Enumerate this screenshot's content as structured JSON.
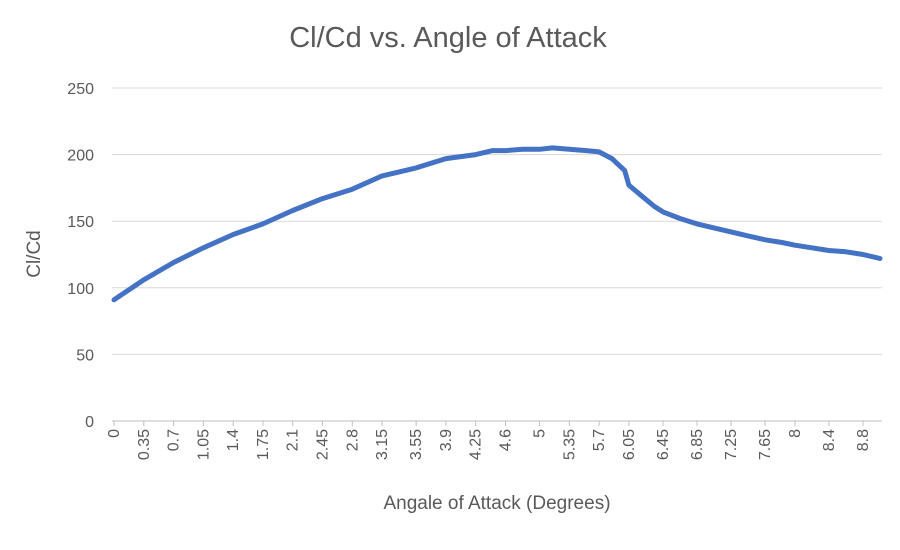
{
  "chart_data": {
    "type": "line",
    "title": "Cl/Cd vs. Angle of Attack",
    "xlabel": "Angale of Attack (Degrees)",
    "ylabel": "Cl/Cd",
    "ylim": [
      0,
      250
    ],
    "yticks": [
      "0",
      "50",
      "100",
      "150",
      "200",
      "250"
    ],
    "xticks": [
      "0",
      "0.35",
      "0.7",
      "1.05",
      "1.4",
      "1.75",
      "2.1",
      "2.45",
      "2.8",
      "3.15",
      "3.55",
      "3.9",
      "4.25",
      "4.6",
      "5",
      "5.35",
      "5.7",
      "6.05",
      "6.45",
      "6.85",
      "7.25",
      "7.65",
      "8",
      "8.4",
      "8.8"
    ],
    "grid": true,
    "legend": "none",
    "color": "#4472C4",
    "series": [
      {
        "x": [
          0,
          0.35,
          0.7,
          1.05,
          1.4,
          1.75,
          2.1,
          2.45,
          2.8,
          3.15,
          3.55,
          3.9,
          4.25,
          4.45,
          4.6,
          4.8,
          5,
          5.15,
          5.35,
          5.55,
          5.7,
          5.85,
          6.0,
          6.05,
          6.2,
          6.35,
          6.45,
          6.65,
          6.85,
          7.05,
          7.25,
          7.45,
          7.65,
          7.85,
          8,
          8.2,
          8.4,
          8.6,
          8.8,
          9.0
        ],
        "y": [
          91,
          106,
          119,
          130,
          140,
          148,
          158,
          167,
          174,
          184,
          190,
          197,
          200,
          203,
          203,
          204,
          204,
          205,
          204,
          203,
          202,
          197,
          188,
          177,
          169,
          161,
          157,
          152,
          148,
          145,
          142,
          139,
          136,
          134,
          132,
          130,
          128,
          127,
          125,
          122
        ]
      }
    ]
  }
}
